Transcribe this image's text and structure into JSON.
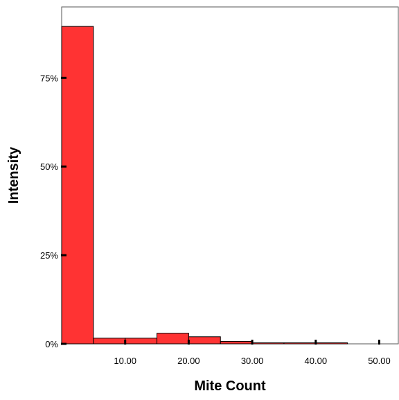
{
  "chart_data": {
    "type": "bar",
    "title": "",
    "xlabel": "Mite Count",
    "ylabel": "Intensity",
    "bins": [
      {
        "x0": 0,
        "x1": 5,
        "value": 89.5
      },
      {
        "x0": 5,
        "x1": 10,
        "value": 1.6
      },
      {
        "x0": 10,
        "x1": 15,
        "value": 1.6
      },
      {
        "x0": 15,
        "x1": 20,
        "value": 3.0
      },
      {
        "x0": 20,
        "x1": 25,
        "value": 2.0
      },
      {
        "x0": 25,
        "x1": 30,
        "value": 0.7
      },
      {
        "x0": 30,
        "x1": 35,
        "value": 0.3
      },
      {
        "x0": 35,
        "x1": 40,
        "value": 0.3
      },
      {
        "x0": 40,
        "x1": 45,
        "value": 0.3
      }
    ],
    "xlim": [
      0,
      53
    ],
    "ylim": [
      0,
      95
    ],
    "xticks": [
      10,
      20,
      30,
      40,
      50
    ],
    "xtick_labels": [
      "10.00",
      "20.00",
      "30.00",
      "40.00",
      "50.00"
    ],
    "yticks": [
      0,
      25,
      50,
      75
    ],
    "ytick_labels": [
      "0%",
      "25%",
      "50%",
      "75%"
    ],
    "grid": false,
    "legend": "none",
    "bar_color": "#ff3333",
    "bar_edge_color": "#000000"
  }
}
